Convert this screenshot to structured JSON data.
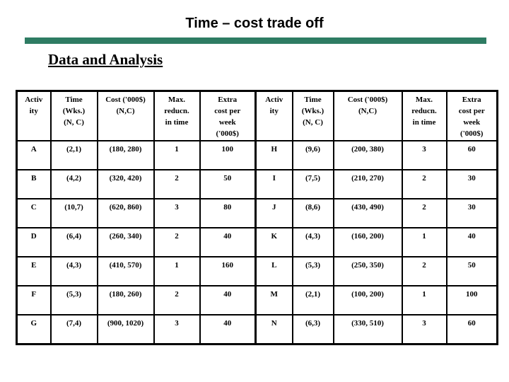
{
  "title": "Time – cost trade off",
  "subtitle": "Data and Analysis",
  "accent_color": "#2e7c63",
  "text_color": "#000000",
  "table": {
    "header": [
      "Activ\nity",
      "Time\n(Wks.)\n(N, C)",
      "Cost ('000$)\n(N,C)",
      "Max.\nreducn.\nin time",
      "Extra\ncost per\nweek\n('000$)",
      "Activ\nity",
      "Time\n(Wks.)\n(N, C)",
      "Cost ('000$)\n(N,C)",
      "Max.\nreducn.\nin time",
      "Extra\ncost per\nweek\n('000$)"
    ],
    "rows": [
      [
        "A",
        "(2,1)",
        "(180, 280)",
        "1",
        "100",
        "H",
        "(9,6)",
        "(200, 380)",
        "3",
        "60"
      ],
      [
        "B",
        "(4,2)",
        "(320, 420)",
        "2",
        "50",
        "I",
        "(7,5)",
        "(210, 270)",
        "2",
        "30"
      ],
      [
        "C",
        "(10,7)",
        "(620, 860)",
        "3",
        "80",
        "J",
        "(8,6)",
        "(430, 490)",
        "2",
        "30"
      ],
      [
        "D",
        "(6,4)",
        "(260, 340)",
        "2",
        "40",
        "K",
        "(4,3)",
        "(160, 200)",
        "1",
        "40"
      ],
      [
        "E",
        "(4,3)",
        "(410, 570)",
        "1",
        "160",
        "L",
        "(5,3)",
        "(250, 350)",
        "2",
        "50"
      ],
      [
        "F",
        "(5,3)",
        "(180, 260)",
        "2",
        "40",
        "M",
        "(2,1)",
        "(100, 200)",
        "1",
        "100"
      ],
      [
        "G",
        "(7,4)",
        "(900, 1020)",
        "3",
        "40",
        "N",
        "(6,3)",
        "(330, 510)",
        "3",
        "60"
      ]
    ]
  }
}
